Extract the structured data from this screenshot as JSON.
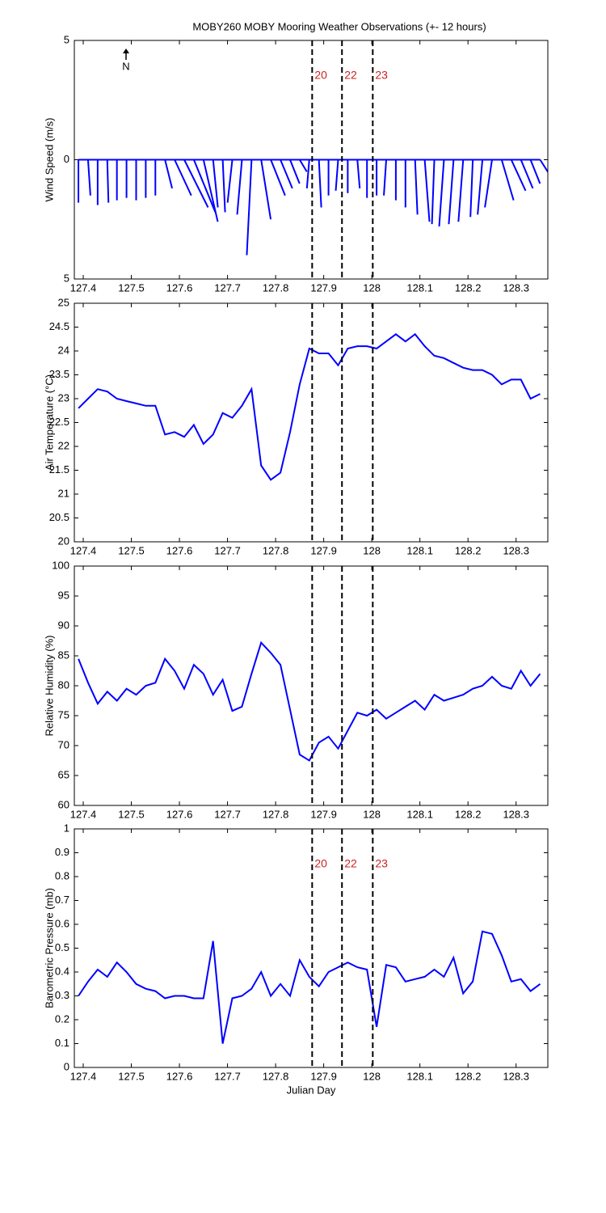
{
  "chart_data": [
    {
      "type": "stick",
      "title": "MOBY260 MOBY Mooring Weather Observations (+- 12 hours)",
      "ylabel": "Wind Speed (m/s)",
      "annotation": "N",
      "color": "#0000ff",
      "x": [
        127.39,
        127.41,
        127.43,
        127.45,
        127.47,
        127.49,
        127.51,
        127.53,
        127.55,
        127.57,
        127.59,
        127.61,
        127.63,
        127.65,
        127.67,
        127.69,
        127.71,
        127.73,
        127.75,
        127.77,
        127.79,
        127.81,
        127.83,
        127.85,
        127.87,
        127.89,
        127.91,
        127.93,
        127.95,
        127.97,
        127.99,
        128.01,
        128.03,
        128.05,
        128.07,
        128.09,
        128.11,
        128.13,
        128.15,
        128.17,
        128.19,
        128.21,
        128.23,
        128.25,
        128.27,
        128.29,
        128.31,
        128.33,
        128.35
      ],
      "u": [
        0.0,
        0.1,
        0.0,
        0.05,
        0.0,
        0.0,
        0.0,
        0.0,
        0.0,
        0.3,
        0.7,
        1.0,
        0.9,
        0.6,
        0.2,
        0.1,
        -0.2,
        -0.2,
        -0.2,
        0.4,
        0.6,
        0.5,
        0.4,
        0.3,
        -0.1,
        0.1,
        0.0,
        -0.1,
        0.0,
        0.1,
        0.0,
        0.0,
        -0.1,
        0.0,
        0.0,
        0.1,
        0.2,
        -0.1,
        -0.2,
        -0.2,
        -0.2,
        -0.1,
        -0.2,
        -0.3,
        0.5,
        0.6,
        0.5,
        0.4,
        0.7
      ],
      "values": [
        -1.8,
        -1.5,
        -1.9,
        -1.8,
        -1.7,
        -1.6,
        -1.7,
        -1.6,
        -1.5,
        -1.2,
        -1.5,
        -2.0,
        -2.2,
        -2.6,
        -2.0,
        -2.2,
        -1.8,
        -2.3,
        -4.0,
        -2.5,
        -1.5,
        -1.2,
        -1.0,
        -0.5,
        -1.2,
        -2.0,
        -1.5,
        -1.3,
        -1.4,
        -1.2,
        -1.6,
        -1.5,
        -1.5,
        -1.7,
        -2.0,
        -2.3,
        -2.6,
        -2.7,
        -2.8,
        -2.7,
        -2.6,
        -2.4,
        -2.3,
        -2.0,
        -1.7,
        -1.3,
        -1.2,
        -1.0,
        -1.1
      ],
      "xlim": [
        127.3815,
        128.366
      ],
      "xticks": [
        127.4,
        127.5,
        127.6,
        127.7,
        127.8,
        127.9,
        128,
        128.1,
        128.2,
        128.3
      ],
      "ylim": [
        -5,
        5
      ],
      "yticks": [
        {
          "value": -5,
          "label": "5"
        },
        0,
        5
      ],
      "vlines": [
        127.876,
        127.938,
        128.002
      ],
      "vline_labels": [
        "20",
        "22",
        "23"
      ]
    },
    {
      "type": "line",
      "ylabel": "Air Temperature (°C)",
      "color": "#0000ff",
      "x": [
        127.39,
        127.41,
        127.43,
        127.45,
        127.47,
        127.49,
        127.51,
        127.53,
        127.55,
        127.57,
        127.59,
        127.61,
        127.63,
        127.65,
        127.67,
        127.69,
        127.71,
        127.73,
        127.75,
        127.77,
        127.79,
        127.81,
        127.83,
        127.85,
        127.87,
        127.89,
        127.91,
        127.93,
        127.95,
        127.97,
        127.99,
        128.01,
        128.03,
        128.05,
        128.07,
        128.09,
        128.11,
        128.13,
        128.15,
        128.17,
        128.19,
        128.21,
        128.23,
        128.25,
        128.27,
        128.29,
        128.31,
        128.33,
        128.35
      ],
      "values": [
        22.8,
        23.0,
        23.2,
        23.15,
        23.0,
        22.95,
        22.9,
        22.85,
        22.85,
        22.25,
        22.3,
        22.2,
        22.45,
        22.05,
        22.25,
        22.7,
        22.6,
        22.85,
        23.2,
        21.6,
        21.3,
        21.45,
        22.3,
        23.3,
        24.05,
        23.95,
        23.95,
        23.7,
        24.05,
        24.1,
        24.1,
        24.05,
        24.2,
        24.35,
        24.2,
        24.35,
        24.1,
        23.9,
        23.85,
        23.75,
        23.65,
        23.6,
        23.6,
        23.5,
        23.3,
        23.4,
        23.4,
        23.0,
        23.1
      ],
      "xlim": [
        127.3815,
        128.366
      ],
      "xticks": [
        127.4,
        127.5,
        127.6,
        127.7,
        127.8,
        127.9,
        128,
        128.1,
        128.2,
        128.3
      ],
      "ylim": [
        20,
        25
      ],
      "yticks": [
        20,
        20.5,
        21,
        21.5,
        22,
        22.5,
        23,
        23.5,
        24,
        24.5,
        25
      ],
      "vlines": [
        127.876,
        127.938,
        128.002
      ]
    },
    {
      "type": "line",
      "ylabel": "Relative Humidity (%)",
      "color": "#0000ff",
      "x": [
        127.39,
        127.41,
        127.43,
        127.45,
        127.47,
        127.49,
        127.51,
        127.53,
        127.55,
        127.57,
        127.59,
        127.61,
        127.63,
        127.65,
        127.67,
        127.69,
        127.71,
        127.73,
        127.75,
        127.77,
        127.79,
        127.81,
        127.83,
        127.85,
        127.87,
        127.89,
        127.91,
        127.93,
        127.95,
        127.97,
        127.99,
        128.01,
        128.03,
        128.05,
        128.07,
        128.09,
        128.11,
        128.13,
        128.15,
        128.17,
        128.19,
        128.21,
        128.23,
        128.25,
        128.27,
        128.29,
        128.31,
        128.33,
        128.35
      ],
      "values": [
        84.5,
        80.5,
        77,
        79,
        77.5,
        79.5,
        78.5,
        80,
        80.5,
        84.5,
        82.5,
        79.5,
        83.5,
        82,
        78.5,
        81,
        75.8,
        76.5,
        82,
        87.2,
        85.5,
        83.5,
        76,
        68.5,
        67.5,
        70.5,
        71.5,
        69.5,
        72.5,
        75.5,
        75,
        76,
        74.5,
        75.5,
        76.5,
        77.5,
        76,
        78.5,
        77.5,
        78,
        78.5,
        79.5,
        80,
        81.5,
        80,
        79.5,
        82.5,
        80,
        82
      ],
      "xlim": [
        127.3815,
        128.366
      ],
      "xticks": [
        127.4,
        127.5,
        127.6,
        127.7,
        127.8,
        127.9,
        128,
        128.1,
        128.2,
        128.3
      ],
      "ylim": [
        60,
        100
      ],
      "yticks": [
        60,
        65,
        70,
        75,
        80,
        85,
        90,
        95,
        100
      ],
      "vlines": [
        127.876,
        127.938,
        128.002
      ]
    },
    {
      "type": "line",
      "ylabel": "Barometric Pressure (mb)",
      "xlabel": "Julian Day",
      "color": "#0000ff",
      "x": [
        127.39,
        127.41,
        127.43,
        127.45,
        127.47,
        127.49,
        127.51,
        127.53,
        127.55,
        127.57,
        127.59,
        127.61,
        127.63,
        127.65,
        127.67,
        127.69,
        127.71,
        127.73,
        127.75,
        127.77,
        127.79,
        127.81,
        127.83,
        127.85,
        127.87,
        127.89,
        127.91,
        127.93,
        127.95,
        127.97,
        127.99,
        128.01,
        128.03,
        128.05,
        128.07,
        128.09,
        128.11,
        128.13,
        128.15,
        128.17,
        128.19,
        128.21,
        128.23,
        128.25,
        128.27,
        128.29,
        128.31,
        128.33,
        128.35
      ],
      "values": [
        0.3,
        0.36,
        0.41,
        0.38,
        0.44,
        0.4,
        0.35,
        0.33,
        0.32,
        0.29,
        0.3,
        0.3,
        0.29,
        0.29,
        0.53,
        0.1,
        0.29,
        0.3,
        0.33,
        0.4,
        0.3,
        0.35,
        0.3,
        0.45,
        0.38,
        0.34,
        0.4,
        0.42,
        0.44,
        0.42,
        0.41,
        0.17,
        0.43,
        0.42,
        0.36,
        0.37,
        0.38,
        0.41,
        0.38,
        0.46,
        0.31,
        0.36,
        0.57,
        0.56,
        0.47,
        0.36,
        0.37,
        0.32,
        0.35
      ],
      "xlim": [
        127.3815,
        128.366
      ],
      "xticks": [
        127.4,
        127.5,
        127.6,
        127.7,
        127.8,
        127.9,
        128,
        128.1,
        128.2,
        128.3
      ],
      "ylim": [
        0,
        1
      ],
      "yticks": [
        0,
        0.1,
        0.2,
        0.3,
        0.4,
        0.5,
        0.6,
        0.7,
        0.8,
        0.9,
        1
      ],
      "vlines": [
        127.876,
        127.938,
        128.002
      ],
      "vline_labels": [
        "20",
        "22",
        "23"
      ]
    }
  ]
}
